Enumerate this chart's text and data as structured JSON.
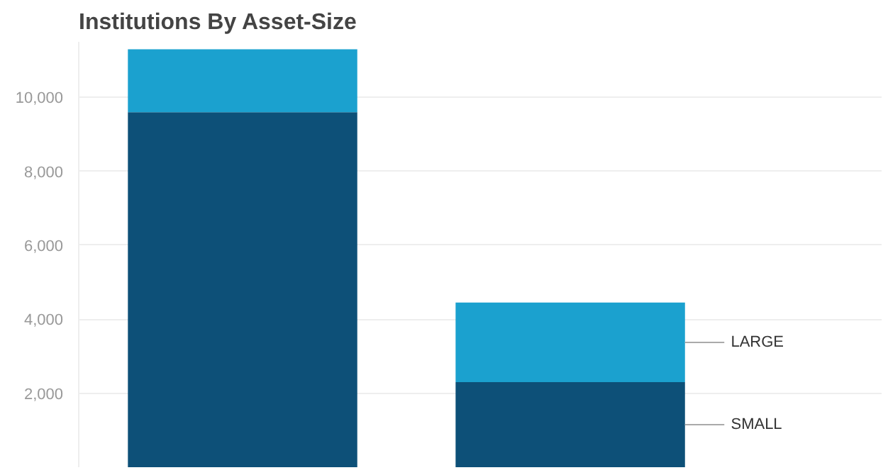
{
  "chart_data": {
    "type": "bar",
    "title": "Institutions By Asset-Size",
    "categories": [
      null,
      null
    ],
    "stacked": true,
    "series": [
      {
        "name": "SMALL",
        "color": "#0d5078",
        "values": [
          9600,
          2300
        ]
      },
      {
        "name": "LARGE",
        "color": "#1ba1cf",
        "values": [
          1700,
          2150
        ]
      }
    ],
    "ylim": [
      0,
      11500
    ],
    "yticks": [
      {
        "value": 2000,
        "label": "2,000"
      },
      {
        "value": 4000,
        "label": "4,000"
      },
      {
        "value": 6000,
        "label": "6,000"
      },
      {
        "value": 8000,
        "label": "8,000"
      },
      {
        "value": 10000,
        "label": "10,000"
      }
    ],
    "grid": "y",
    "tick_labels": "y",
    "legend": "right"
  }
}
